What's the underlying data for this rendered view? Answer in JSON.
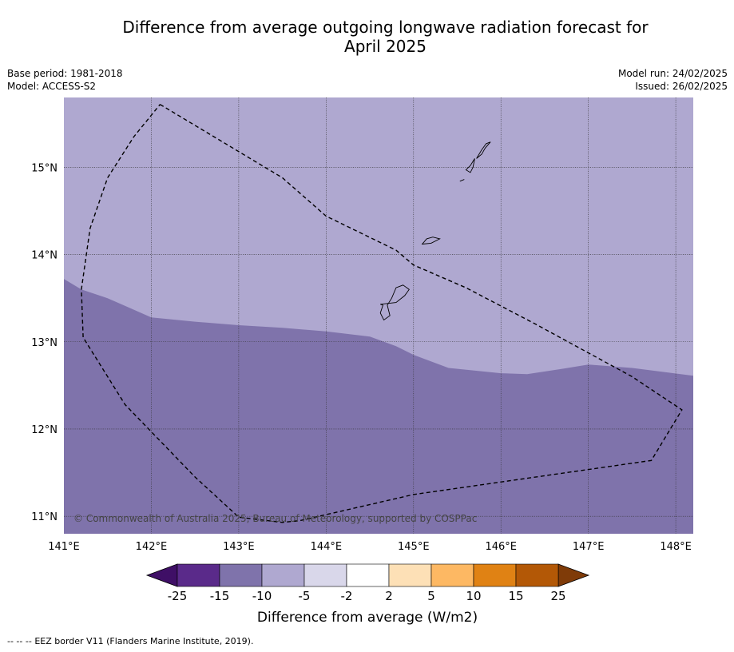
{
  "title_line1": "Difference from average outgoing longwave radiation forecast for",
  "title_line2": "April 2025",
  "meta_left": {
    "base_period": "Base period: 1981-2018",
    "model": "Model: ACCESS-S2"
  },
  "meta_right": {
    "model_run": "Model run: 24/02/2025",
    "issued": "Issued: 26/02/2025"
  },
  "map": {
    "lon_range": [
      141.0,
      148.2
    ],
    "lat_range": [
      10.8,
      15.8
    ],
    "lon_ticks": [
      141,
      142,
      143,
      144,
      145,
      146,
      147,
      148
    ],
    "lon_tick_labels": [
      "141°E",
      "142°E",
      "143°E",
      "144°E",
      "145°E",
      "146°E",
      "147°E",
      "148°E"
    ],
    "lat_ticks": [
      11,
      12,
      13,
      14,
      15
    ],
    "lat_tick_labels": [
      "11°N",
      "12°N",
      "13°N",
      "14°N",
      "15°N"
    ],
    "gridlines": true,
    "regions": [
      {
        "category": "-10 to -5",
        "color": "#afa8d0",
        "location": "north"
      },
      {
        "category": "-15 to -10",
        "color": "#7f73ab",
        "location": "south"
      }
    ],
    "category_boundary": [
      [
        141.0,
        13.72
      ],
      [
        141.2,
        13.6
      ],
      [
        141.5,
        13.5
      ],
      [
        142.0,
        13.28
      ],
      [
        142.5,
        13.23
      ],
      [
        143.0,
        13.19
      ],
      [
        143.5,
        13.16
      ],
      [
        144.0,
        13.12
      ],
      [
        144.5,
        13.06
      ],
      [
        144.8,
        12.95
      ],
      [
        145.0,
        12.85
      ],
      [
        145.4,
        12.7
      ],
      [
        146.0,
        12.64
      ],
      [
        146.3,
        12.63
      ],
      [
        146.7,
        12.69
      ],
      [
        147.0,
        12.74
      ],
      [
        147.5,
        12.7
      ],
      [
        148.2,
        12.61
      ]
    ],
    "eez_border": [
      [
        142.1,
        15.72
      ],
      [
        143.5,
        14.88
      ],
      [
        144.0,
        14.44
      ],
      [
        144.8,
        14.05
      ],
      [
        145.0,
        13.88
      ],
      [
        145.6,
        13.62
      ],
      [
        146.4,
        13.2
      ],
      [
        147.5,
        12.6
      ],
      [
        148.07,
        12.22
      ],
      [
        147.72,
        11.64
      ],
      [
        145.0,
        11.25
      ],
      [
        143.7,
        10.95
      ],
      [
        143.5,
        10.93
      ],
      [
        143.0,
        10.99
      ],
      [
        142.5,
        11.45
      ],
      [
        141.7,
        12.28
      ],
      [
        141.22,
        13.05
      ],
      [
        141.2,
        13.6
      ],
      [
        141.3,
        14.3
      ],
      [
        141.5,
        14.88
      ],
      [
        141.8,
        15.35
      ],
      [
        142.1,
        15.72
      ]
    ],
    "islands": [
      {
        "name": "",
        "outline": [
          [
            144.62,
            13.43
          ],
          [
            144.8,
            13.45
          ],
          [
            144.9,
            13.53
          ],
          [
            144.95,
            13.6
          ],
          [
            144.88,
            13.65
          ],
          [
            144.8,
            13.62
          ],
          [
            144.75,
            13.5
          ],
          [
            144.7,
            13.42
          ],
          [
            144.73,
            13.3
          ],
          [
            144.66,
            13.25
          ],
          [
            144.62,
            13.33
          ],
          [
            144.65,
            13.42
          ]
        ]
      },
      {
        "name": "",
        "outline": [
          [
            145.1,
            14.12
          ],
          [
            145.2,
            14.13
          ],
          [
            145.3,
            14.18
          ],
          [
            145.22,
            14.2
          ],
          [
            145.15,
            14.18
          ]
        ]
      },
      {
        "name": "",
        "outline": [
          [
            145.6,
            14.97
          ],
          [
            145.65,
            15.02
          ],
          [
            145.7,
            15.1
          ],
          [
            145.68,
            15.0
          ],
          [
            145.65,
            14.94
          ]
        ]
      },
      {
        "name": "",
        "outline": [
          [
            145.72,
            15.1
          ],
          [
            145.78,
            15.2
          ],
          [
            145.83,
            15.27
          ],
          [
            145.88,
            15.29
          ],
          [
            145.82,
            15.22
          ],
          [
            145.78,
            15.15
          ]
        ]
      },
      {
        "name": "",
        "outline": [
          [
            145.53,
            14.84
          ],
          [
            145.58,
            14.86
          ]
        ]
      }
    ],
    "copyright": "© Commonwealth of Australia 2025, Bureau of Meteorology, supported by COSPPac"
  },
  "colorbar": {
    "label": "Difference from average (W/m2)",
    "tick_labels": [
      "-25",
      "-15",
      "-10",
      "-5",
      "-2",
      "2",
      "5",
      "10",
      "15",
      "25"
    ],
    "under_color": "#3f0f66",
    "over_color": "#7f3b08",
    "colors": [
      "#5a2a8a",
      "#7f73ab",
      "#afa8d0",
      "#d9d7ea",
      "#ffffff",
      "#fde0b6",
      "#fdb863",
      "#e08214",
      "#b35806"
    ]
  },
  "footer": {
    "symbol": "--  --  --",
    "text": "EEZ border V11 (Flanders Marine Institute, 2019)."
  }
}
